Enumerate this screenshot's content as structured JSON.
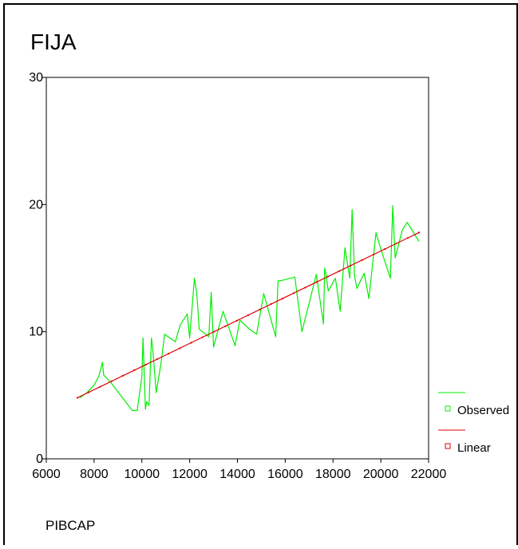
{
  "chart_data": {
    "type": "line",
    "title": "FIJA",
    "xlabel": "PIBCAP",
    "ylabel": "",
    "xlim": [
      6000,
      22000
    ],
    "ylim": [
      0,
      30
    ],
    "x_ticks": [
      "6000",
      "8000",
      "10000",
      "12000",
      "14000",
      "16000",
      "18000",
      "20000",
      "22000"
    ],
    "y_ticks": [
      "0",
      "10",
      "20",
      "30"
    ],
    "grid": false,
    "legend_position": "right",
    "series": [
      {
        "name": "Observed",
        "color": "#00ee00",
        "marker": "square-outline",
        "x": [
          7400,
          7700,
          8000,
          8200,
          8350,
          8400,
          8700,
          9600,
          9800,
          10000,
          10050,
          10150,
          10200,
          10300,
          10400,
          10450,
          10600,
          10800,
          10950,
          11400,
          11600,
          11900,
          12000,
          12200,
          12300,
          12400,
          12800,
          12900,
          13000,
          13400,
          13900,
          14100,
          14500,
          14800,
          15100,
          15600,
          15700,
          15800,
          16400,
          16700,
          17300,
          17600,
          17650,
          17700,
          17800,
          18100,
          18300,
          18500,
          18700,
          18800,
          18900,
          19000,
          19300,
          19500,
          19800,
          20000,
          20400,
          20500,
          20600,
          20900,
          21100,
          21600
        ],
        "y": [
          4.8,
          5.2,
          5.8,
          6.5,
          7.6,
          6.6,
          6.0,
          3.8,
          3.8,
          6.5,
          9.5,
          3.9,
          4.5,
          4.2,
          9.5,
          8.8,
          5.2,
          7.5,
          9.8,
          9.2,
          10.5,
          11.4,
          9.5,
          14.2,
          13.0,
          10.2,
          9.6,
          13.1,
          8.8,
          11.6,
          8.9,
          10.9,
          10.2,
          9.8,
          13.0,
          9.6,
          14.0,
          14.0,
          14.3,
          10.0,
          14.5,
          10.6,
          15.0,
          14.6,
          13.2,
          14.2,
          11.6,
          16.6,
          14.2,
          19.6,
          14.4,
          13.4,
          14.6,
          12.6,
          17.8,
          16.5,
          14.2,
          19.9,
          15.8,
          18.0,
          18.6,
          17.1
        ]
      },
      {
        "name": "Linear",
        "color": "#dd0000",
        "marker": "square-outline",
        "x": [
          7300,
          21600
        ],
        "y": [
          4.8,
          17.8
        ]
      }
    ]
  }
}
